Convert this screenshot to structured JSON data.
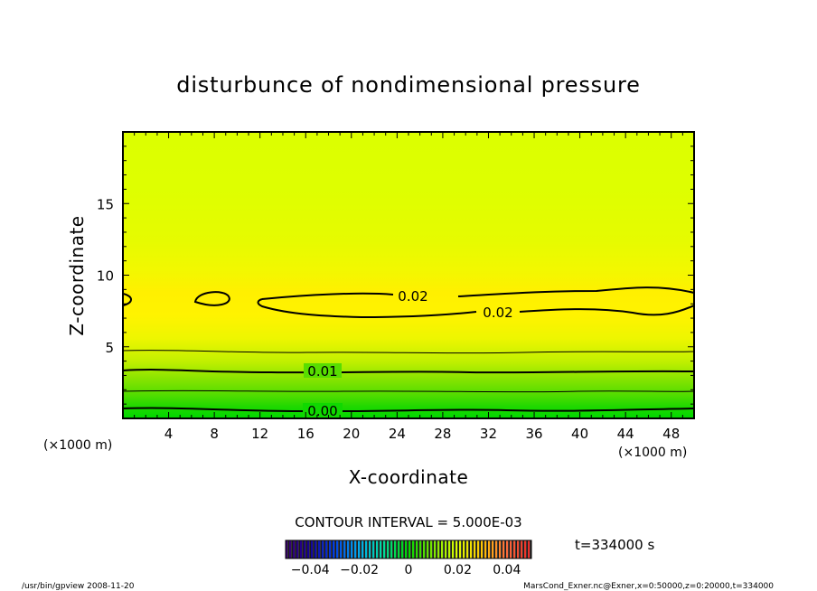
{
  "chart_data": {
    "type": "heatmap",
    "title": "disturbunce of nondimensional pressure",
    "xlabel": "X-coordinate",
    "ylabel": "Z-coordinate",
    "x_unit": "(×1000 m)",
    "y_unit": "(×1000 m)",
    "xlim": [
      0,
      50
    ],
    "ylim": [
      0,
      20
    ],
    "x_ticks": [
      4,
      8,
      12,
      16,
      20,
      24,
      28,
      32,
      36,
      40,
      44,
      48
    ],
    "y_ticks": [
      5,
      10,
      15
    ],
    "contour_interval": "CONTOUR INTERVAL = 5.000E-03",
    "time_label": "t=334000 s",
    "colorbar": {
      "range": [
        -0.05,
        0.05
      ],
      "tick_labels": [
        "−0.04",
        "−0.02",
        "0",
        "0.02",
        "0.04"
      ],
      "tick_values": [
        -0.04,
        -0.02,
        0,
        0.02,
        0.04
      ]
    },
    "contour_labels": [
      {
        "text": "0.02",
        "x": 23.5,
        "y": 8.5
      },
      {
        "text": "0.02",
        "x": 32.7,
        "y": 7.4
      },
      {
        "text": "0.01",
        "x": 17.2,
        "y": 3.3
      },
      {
        "text": "0.00",
        "x": 17.2,
        "y": 0.5
      }
    ],
    "value_profile_by_height": [
      {
        "z": 0.0,
        "value": 0.0
      },
      {
        "z": 1.0,
        "value": 0.003
      },
      {
        "z": 2.0,
        "value": 0.006
      },
      {
        "z": 3.0,
        "value": 0.0095
      },
      {
        "z": 4.0,
        "value": 0.0125
      },
      {
        "z": 5.0,
        "value": 0.0155
      },
      {
        "z": 6.0,
        "value": 0.018
      },
      {
        "z": 7.0,
        "value": 0.0195
      },
      {
        "z": 8.0,
        "value": 0.0205
      },
      {
        "z": 9.0,
        "value": 0.0198
      },
      {
        "z": 10.0,
        "value": 0.0185
      },
      {
        "z": 12.0,
        "value": 0.017
      },
      {
        "z": 14.0,
        "value": 0.016
      },
      {
        "z": 17.0,
        "value": 0.0152
      },
      {
        "z": 20.0,
        "value": 0.015
      }
    ]
  },
  "footer": {
    "left": "/usr/bin/gpview  2008-11-20",
    "right": "MarsCond_Exner.nc@Exner,x=0:50000,z=0:20000,t=334000"
  }
}
